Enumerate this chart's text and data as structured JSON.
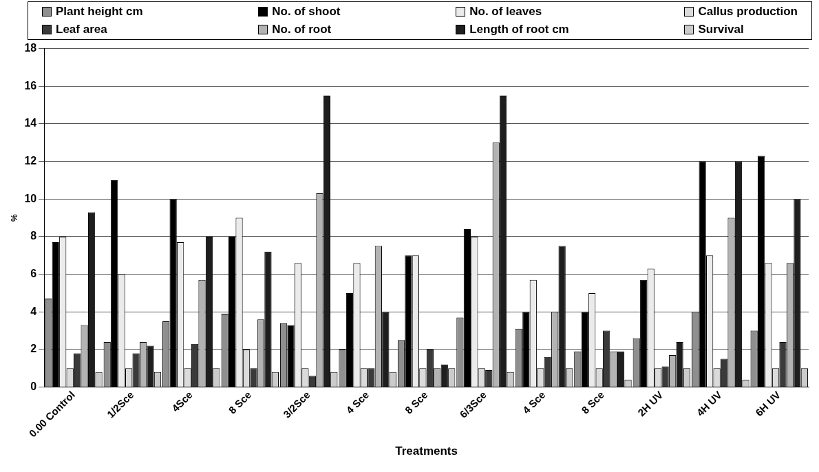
{
  "chart_data": {
    "type": "bar",
    "xlabel": "Treatments",
    "ylabel": "%",
    "categories": [
      "0.00 Control",
      "1/2Sce",
      "4Sce",
      "8 Sce",
      "3/2Sce",
      "4 Sce",
      "8 Sce",
      "6/3Sce",
      "4 Sce",
      "8 Sce",
      "2H UV",
      "4H UV",
      "6H UV"
    ],
    "series": [
      {
        "name": "Plant height cm",
        "color": "#8f8f8f",
        "values": [
          4.7,
          2.4,
          3.5,
          3.9,
          3.4,
          2.0,
          2.5,
          3.7,
          3.1,
          1.9,
          2.6,
          4.0,
          3.0
        ]
      },
      {
        "name": "No. of shoot",
        "color": "#000000",
        "values": [
          7.7,
          11.0,
          10.0,
          8.0,
          3.3,
          5.0,
          7.0,
          8.4,
          4.0,
          4.0,
          5.7,
          12.0,
          12.3
        ]
      },
      {
        "name": "No. of leaves",
        "color": "#ebebeb",
        "values": [
          8.0,
          6.0,
          7.7,
          9.0,
          6.6,
          6.6,
          7.0,
          8.0,
          5.7,
          5.0,
          6.3,
          7.0,
          6.6
        ]
      },
      {
        "name": "Callus production",
        "color": "#dbdbdb",
        "values": [
          1.0,
          1.0,
          1.0,
          2.0,
          1.0,
          1.0,
          1.0,
          1.0,
          1.0,
          1.0,
          1.0,
          1.0,
          1.0
        ]
      },
      {
        "name": "Leaf area",
        "color": "#3a3a3a",
        "values": [
          1.8,
          1.8,
          2.3,
          1.0,
          0.6,
          1.0,
          2.0,
          0.9,
          1.6,
          3.0,
          1.1,
          1.5,
          2.4
        ]
      },
      {
        "name": "No. of root",
        "color": "#b3b3b3",
        "values": [
          3.3,
          2.4,
          5.7,
          3.6,
          10.3,
          7.5,
          1.0,
          13.0,
          4.0,
          1.9,
          1.7,
          9.0,
          6.6
        ]
      },
      {
        "name": "Length of root cm",
        "color": "#1e1e1e",
        "values": [
          9.3,
          2.2,
          8.0,
          7.2,
          15.5,
          4.0,
          1.2,
          15.5,
          7.5,
          1.9,
          2.4,
          12.0,
          10.0
        ]
      },
      {
        "name": "Survival",
        "color": "#cbcbcb",
        "values": [
          0.8,
          0.8,
          1.0,
          0.8,
          0.8,
          0.8,
          1.0,
          0.8,
          1.0,
          0.4,
          1.0,
          0.4,
          1.0
        ]
      }
    ],
    "ylim": [
      0,
      18
    ],
    "yticks": [
      0,
      2,
      4,
      6,
      8,
      10,
      12,
      14,
      16,
      18
    ],
    "grid": "y",
    "legend": "top"
  }
}
